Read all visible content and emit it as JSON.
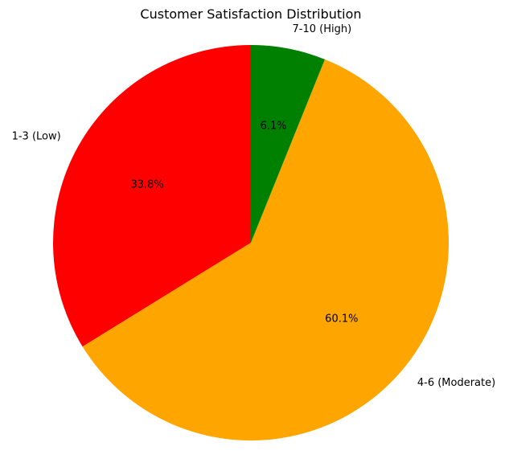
{
  "chart_data": {
    "type": "pie",
    "title": "Customer Satisfaction Distribution",
    "slices": [
      {
        "label": "1-3 (Low)",
        "value": 33.8,
        "pct_label": "33.8%",
        "color": "#ff0000"
      },
      {
        "label": "4-6 (Moderate)",
        "value": 60.1,
        "pct_label": "60.1%",
        "color": "#ffa500"
      },
      {
        "label": "7-10 (High)",
        "value": 6.1,
        "pct_label": "6.1%",
        "color": "#008000"
      }
    ],
    "start_angle_deg": 90,
    "direction": "counterclockwise",
    "legend": "none"
  }
}
